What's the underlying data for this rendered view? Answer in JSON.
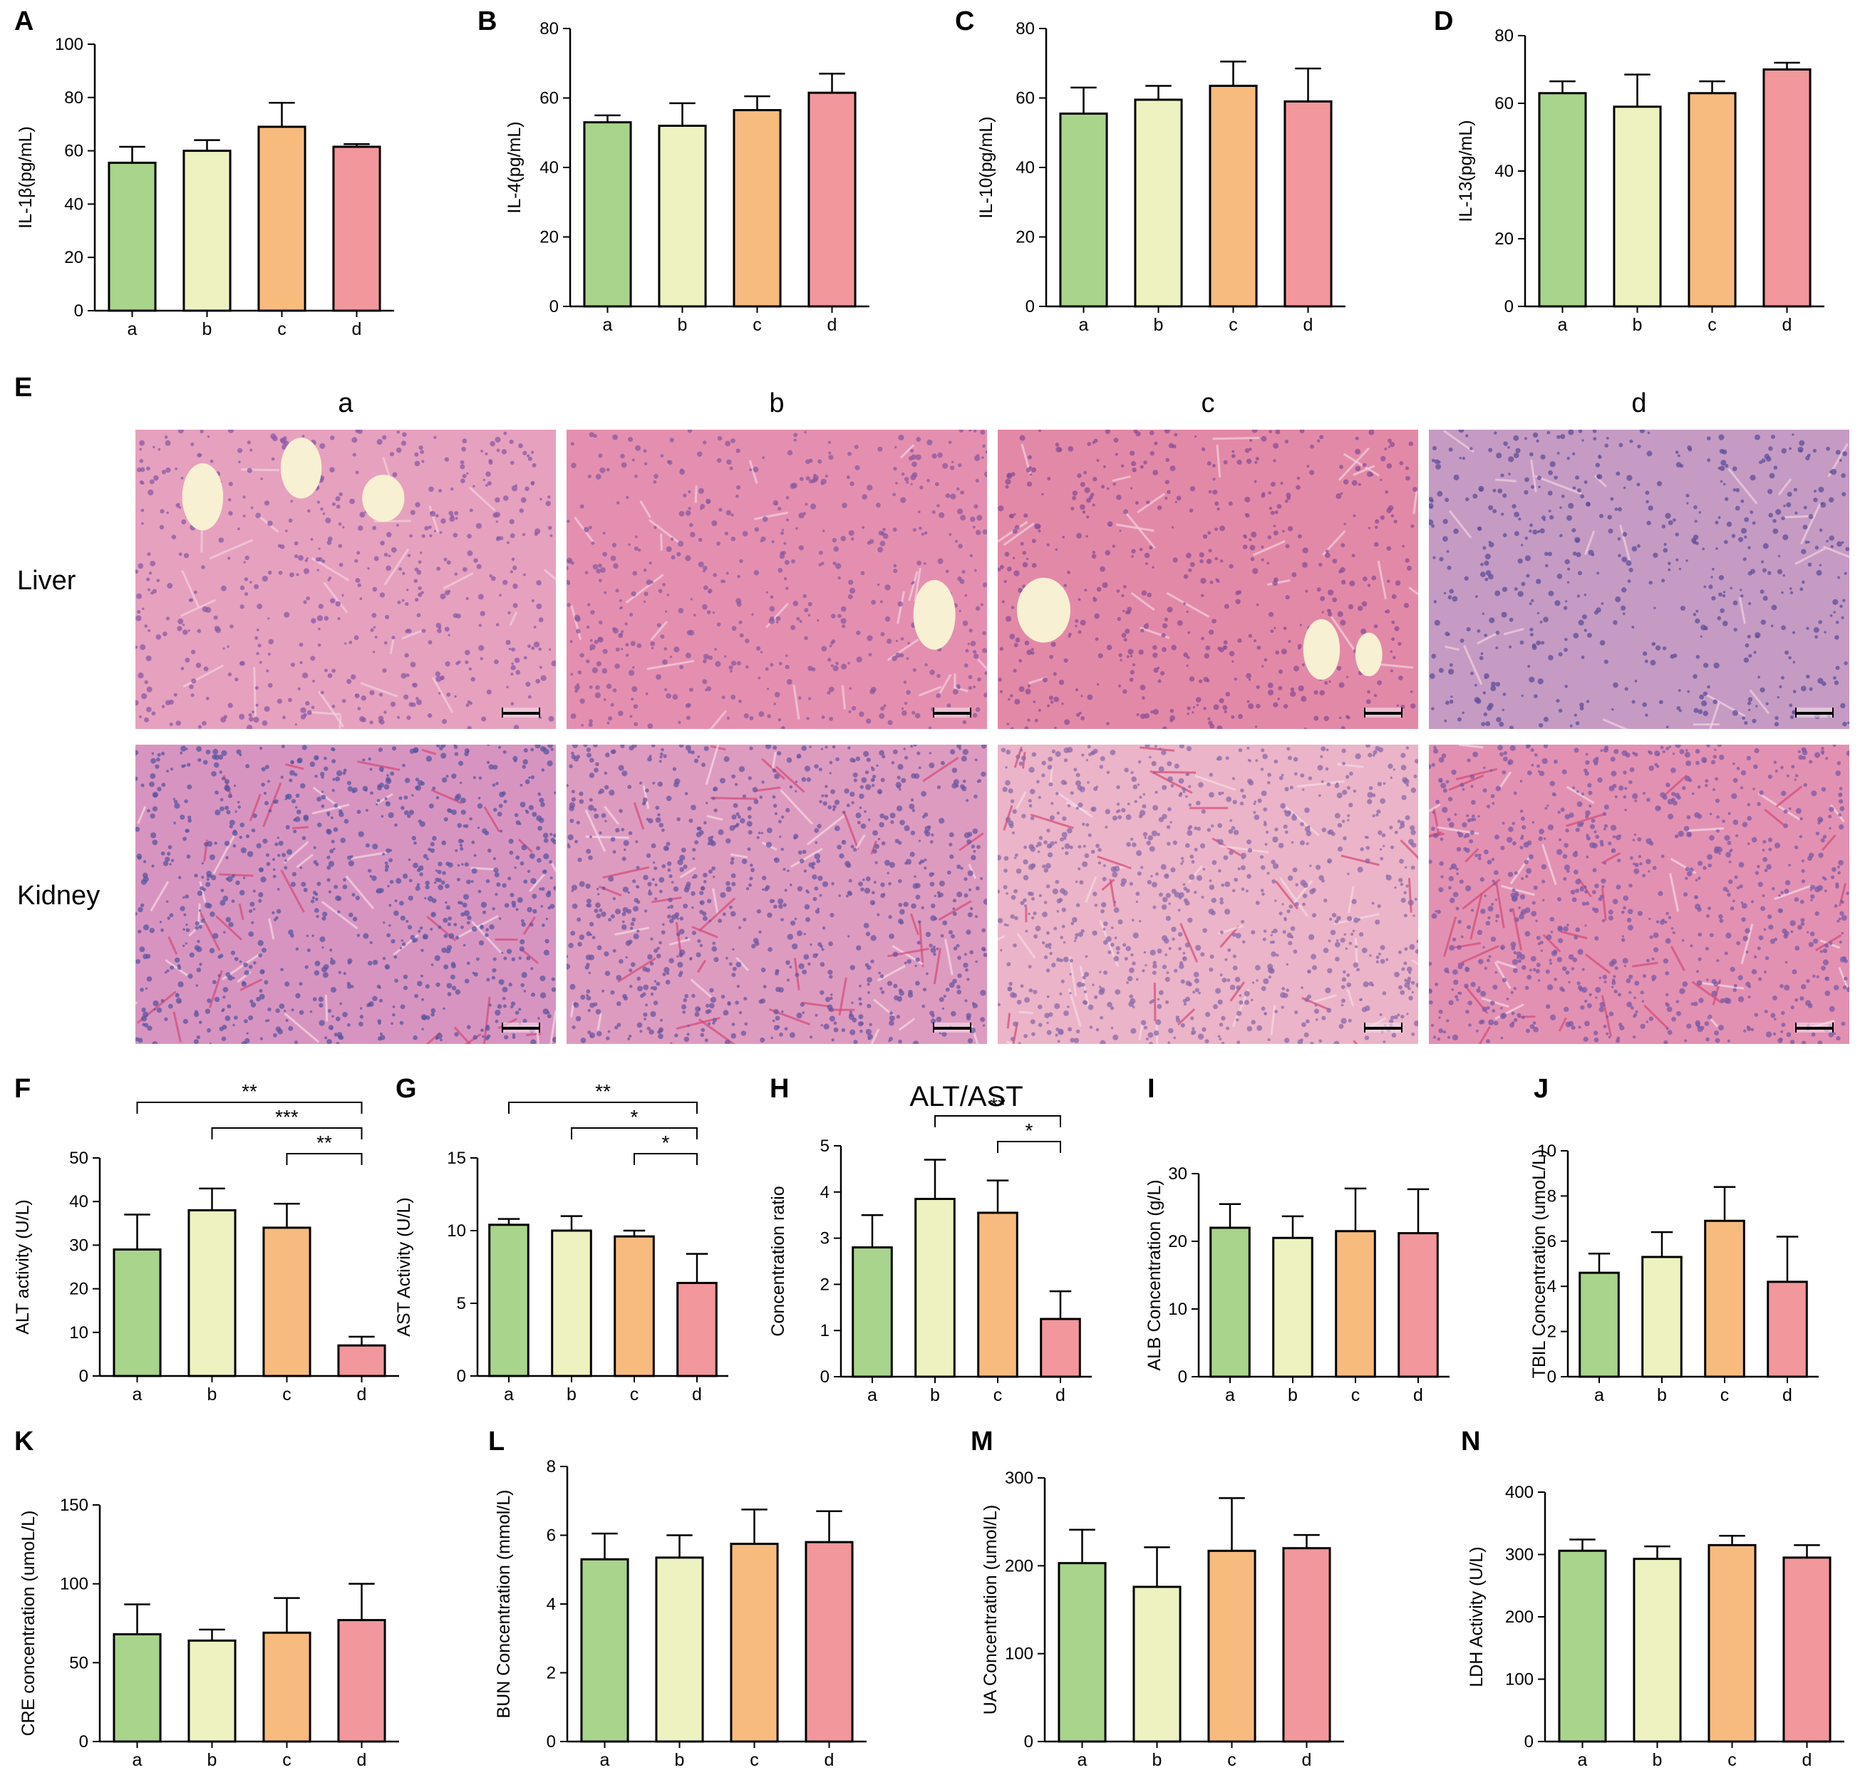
{
  "colors": {
    "group_fills": [
      "#a9d48c",
      "#eef2c0",
      "#f7bb7e",
      "#f2979b"
    ],
    "axis": "#000000"
  },
  "histology": {
    "panel": "E",
    "columns": [
      "a",
      "b",
      "c",
      "d"
    ],
    "rows": [
      "Liver",
      "Kidney"
    ],
    "tiles": [
      {
        "row": "Liver",
        "col": "a",
        "base": "#e6a1be",
        "nuclei": "#8a5aa6",
        "vessels": 3
      },
      {
        "row": "Liver",
        "col": "b",
        "base": "#e58fb0",
        "nuclei": "#8a5a9e",
        "vessels": 1
      },
      {
        "row": "Liver",
        "col": "c",
        "base": "#e389a8",
        "nuclei": "#8a4f94",
        "vessels": 3
      },
      {
        "row": "Liver",
        "col": "d",
        "base": "#c59bc4",
        "nuclei": "#5d4e98",
        "vessels": 0
      },
      {
        "row": "Kidney",
        "col": "a",
        "base": "#d894c0",
        "nuclei": "#5a55a0",
        "vessels": 0
      },
      {
        "row": "Kidney",
        "col": "b",
        "base": "#de9bc0",
        "nuclei": "#6a55a0",
        "vessels": 0
      },
      {
        "row": "Kidney",
        "col": "c",
        "base": "#ecb4c8",
        "nuclei": "#8a6aaa",
        "vessels": 0
      },
      {
        "row": "Kidney",
        "col": "d",
        "base": "#e391b2",
        "nuclei": "#7a5aa5",
        "vessels": 0
      }
    ]
  },
  "chart_data": [
    {
      "panel": "A",
      "type": "bar",
      "ylabel": "IL-1β(pg/mL)",
      "ylim": [
        0,
        100
      ],
      "yticks": [
        0,
        20,
        40,
        60,
        80,
        100
      ],
      "categories": [
        "a",
        "b",
        "c",
        "d"
      ],
      "values": [
        55.5,
        60,
        69,
        61.5
      ],
      "errors": [
        6,
        4,
        9,
        1
      ],
      "significance": []
    },
    {
      "panel": "B",
      "type": "bar",
      "ylabel": "IL-4(pg/mL)",
      "ylim": [
        0,
        80
      ],
      "yticks": [
        0,
        20,
        40,
        60,
        80
      ],
      "categories": [
        "a",
        "b",
        "c",
        "d"
      ],
      "values": [
        53,
        52,
        56.5,
        61.5
      ],
      "errors": [
        2,
        6.5,
        4,
        5.5
      ],
      "significance": []
    },
    {
      "panel": "C",
      "type": "bar",
      "ylabel": "IL-10(pg/mL)",
      "ylim": [
        0,
        80
      ],
      "yticks": [
        0,
        20,
        40,
        60,
        80
      ],
      "categories": [
        "a",
        "b",
        "c",
        "d"
      ],
      "values": [
        55.5,
        59.5,
        63.5,
        59
      ],
      "errors": [
        7.5,
        4,
        7,
        9.5
      ],
      "significance": []
    },
    {
      "panel": "D",
      "type": "bar",
      "ylabel": "IL-13(pg/mL)",
      "ylim": [
        0,
        80
      ],
      "yticks": [
        0,
        20,
        40,
        60,
        80
      ],
      "categories": [
        "a",
        "b",
        "c",
        "d"
      ],
      "values": [
        63,
        59,
        63,
        70
      ],
      "errors": [
        3.5,
        9.5,
        3.5,
        2
      ],
      "significance": []
    },
    {
      "panel": "F",
      "type": "bar",
      "ylabel": "ALT activity (U/L)",
      "ylim": [
        0,
        50
      ],
      "yticks": [
        0,
        10,
        20,
        30,
        40,
        50
      ],
      "categories": [
        "a",
        "b",
        "c",
        "d"
      ],
      "values": [
        29,
        38,
        34,
        7
      ],
      "errors": [
        8,
        5,
        5.5,
        2
      ],
      "significance": [
        {
          "from": "a",
          "to": "d",
          "label": "**"
        },
        {
          "from": "b",
          "to": "d",
          "label": "***"
        },
        {
          "from": "c",
          "to": "d",
          "label": "**"
        }
      ]
    },
    {
      "panel": "G",
      "type": "bar",
      "ylabel": "AST Activity (U/L)",
      "ylim": [
        0,
        15
      ],
      "yticks": [
        0,
        5,
        10,
        15
      ],
      "categories": [
        "a",
        "b",
        "c",
        "d"
      ],
      "values": [
        10.4,
        10,
        9.6,
        6.4
      ],
      "errors": [
        0.4,
        1,
        0.4,
        2
      ],
      "significance": [
        {
          "from": "a",
          "to": "d",
          "label": "**"
        },
        {
          "from": "b",
          "to": "d",
          "label": "*"
        },
        {
          "from": "c",
          "to": "d",
          "label": "*"
        }
      ]
    },
    {
      "panel": "H",
      "type": "bar",
      "title": "ALT/AST",
      "ylabel": "Concentration ratio",
      "ylim": [
        0,
        5
      ],
      "yticks": [
        0,
        1,
        2,
        3,
        4,
        5
      ],
      "categories": [
        "a",
        "b",
        "c",
        "d"
      ],
      "values": [
        2.8,
        3.85,
        3.55,
        1.25
      ],
      "errors": [
        0.7,
        0.85,
        0.7,
        0.6
      ],
      "significance": [
        {
          "from": "b",
          "to": "d",
          "label": "**"
        },
        {
          "from": "c",
          "to": "d",
          "label": "*"
        }
      ]
    },
    {
      "panel": "I",
      "type": "bar",
      "ylabel": "ALB Concentration (g/L)",
      "ylim": [
        0,
        30
      ],
      "yticks": [
        0,
        10,
        20,
        30
      ],
      "categories": [
        "a",
        "b",
        "c",
        "d"
      ],
      "values": [
        22,
        20.5,
        21.5,
        21.2
      ],
      "errors": [
        3.5,
        3.2,
        6.3,
        6.5
      ],
      "significance": []
    },
    {
      "panel": "J",
      "type": "bar",
      "ylabel": "TBIL Concentration (umoL/L)",
      "ylim": [
        0,
        10
      ],
      "yticks": [
        0,
        2,
        4,
        6,
        8,
        10
      ],
      "categories": [
        "a",
        "b",
        "c",
        "d"
      ],
      "values": [
        4.6,
        5.3,
        6.9,
        4.2
      ],
      "errors": [
        0.85,
        1.1,
        1.5,
        2
      ],
      "significance": []
    },
    {
      "panel": "K",
      "type": "bar",
      "ylabel": "CRE concentration (umoL/L)",
      "ylim": [
        0,
        150
      ],
      "yticks": [
        0,
        50,
        100,
        150
      ],
      "categories": [
        "a",
        "b",
        "c",
        "d"
      ],
      "values": [
        68,
        64,
        69,
        77
      ],
      "errors": [
        19,
        7,
        22,
        23
      ],
      "significance": []
    },
    {
      "panel": "L",
      "type": "bar",
      "ylabel": "BUN Concentration (mmol/L)",
      "ylim": [
        0,
        8
      ],
      "yticks": [
        0,
        2,
        4,
        6,
        8
      ],
      "categories": [
        "a",
        "b",
        "c",
        "d"
      ],
      "values": [
        5.3,
        5.35,
        5.75,
        5.8
      ],
      "errors": [
        0.75,
        0.65,
        1,
        0.9
      ],
      "significance": []
    },
    {
      "panel": "M",
      "type": "bar",
      "ylabel": "UA Concentration (umol/L)",
      "ylim": [
        0,
        300
      ],
      "yticks": [
        0,
        100,
        200,
        300
      ],
      "categories": [
        "a",
        "b",
        "c",
        "d"
      ],
      "values": [
        203,
        176,
        217,
        220
      ],
      "errors": [
        38,
        45,
        60,
        15
      ],
      "significance": []
    },
    {
      "panel": "N",
      "type": "bar",
      "ylabel": "LDH Activity (U/L)",
      "ylim": [
        0,
        400
      ],
      "yticks": [
        0,
        100,
        200,
        300,
        400
      ],
      "categories": [
        "a",
        "b",
        "c",
        "d"
      ],
      "values": [
        306,
        293,
        315,
        295
      ],
      "errors": [
        18,
        20,
        15,
        20
      ],
      "significance": []
    }
  ]
}
